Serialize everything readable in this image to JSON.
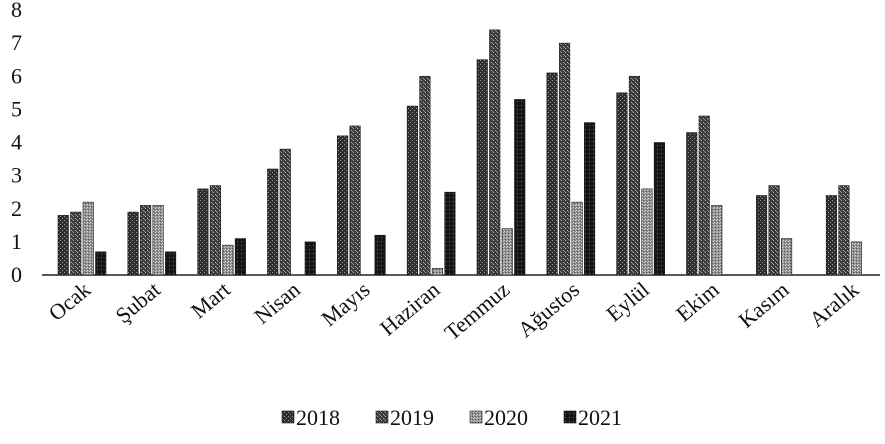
{
  "chart_data": {
    "type": "bar",
    "categories": [
      "Ocak",
      "Şubat",
      "Mart",
      "Nisan",
      "Mayıs",
      "Haziran",
      "Temmuz",
      "Ağustos",
      "Eylül",
      "Ekim",
      "Kasım",
      "Aralık"
    ],
    "series": [
      {
        "name": "2018",
        "color": "#2e2e2e",
        "values": [
          1.8,
          1.9,
          2.6,
          3.2,
          4.2,
          5.1,
          6.5,
          6.1,
          5.5,
          4.3,
          2.4,
          2.4
        ]
      },
      {
        "name": "2019",
        "color": "#4a4a4a",
        "values": [
          1.9,
          2.1,
          2.7,
          3.8,
          4.5,
          6.0,
          7.4,
          7.0,
          6.0,
          4.8,
          2.7,
          2.7
        ]
      },
      {
        "name": "2020",
        "color": "#8a8a8a",
        "values": [
          2.2,
          2.1,
          0.9,
          0.0,
          0.0,
          0.2,
          1.4,
          2.2,
          2.6,
          2.1,
          1.1,
          1.0
        ]
      },
      {
        "name": "2021",
        "color": "#1a1a1a",
        "values": [
          0.7,
          0.7,
          1.1,
          1.0,
          1.2,
          2.5,
          5.3,
          4.6,
          4.0,
          0.0,
          0.0,
          0.0
        ]
      }
    ],
    "ylim": [
      0,
      8
    ],
    "yticks": [
      "0",
      "1",
      "2",
      "3",
      "4",
      "5",
      "6",
      "7",
      "8"
    ],
    "grid": false,
    "legend": "bottom",
    "title": "",
    "xlabel": "",
    "ylabel": ""
  }
}
